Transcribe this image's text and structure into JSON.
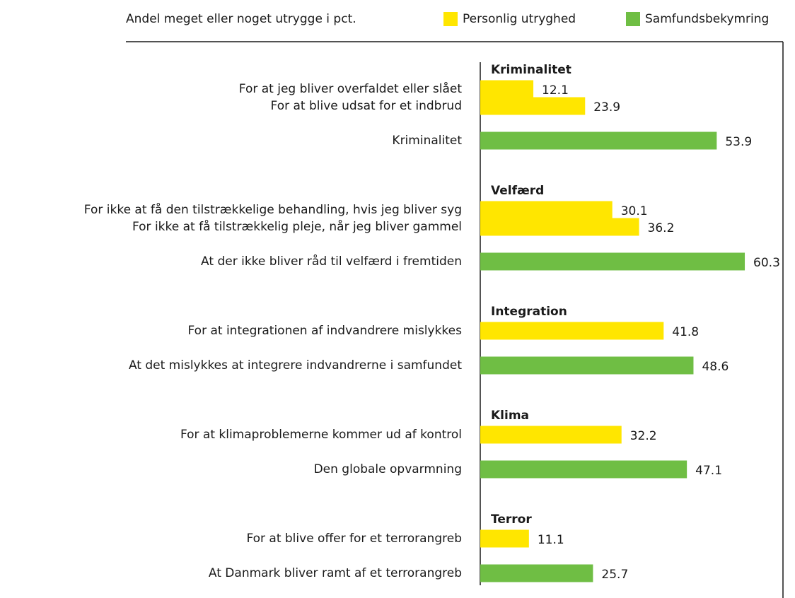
{
  "chart_data": {
    "type": "bar",
    "orientation": "horizontal",
    "legend_title": "Andel meget eller noget utrygge i pct.",
    "groups": [
      {
        "name": "Kriminalitet",
        "categories": [
          "For at jeg bliver overfaldet eller slået",
          "For at blive udsat for et indbrud",
          "Kriminalitet"
        ]
      },
      {
        "name": "Velfærd",
        "categories": [
          "For ikke at få den tilstrækkelige behandling, hvis jeg bliver syg",
          "For ikke at få tilstrækkelig pleje, når jeg bliver gammel",
          "At der ikke bliver råd til velfærd i fremtiden"
        ]
      },
      {
        "name": "Integration",
        "categories": [
          "For at integrationen af indvandrere mislykkes",
          "At det mislykkes at integrere indvandrerne i samfundet"
        ]
      },
      {
        "name": "Klima",
        "categories": [
          "For at klimaproblemerne kommer ud af kontrol",
          "Den globale opvarmning"
        ]
      },
      {
        "name": "Terror",
        "categories": [
          "For at blive offer for et terrorangreb",
          "At Danmark bliver ramt af et terrorangreb"
        ]
      }
    ],
    "series": [
      {
        "name": "Personlig utryghed",
        "color": "#ffe600",
        "values": [
          12.1,
          23.9,
          null,
          30.1,
          36.2,
          null,
          41.8,
          null,
          32.2,
          null,
          11.1,
          null
        ]
      },
      {
        "name": "Samfundsbekymring",
        "color": "#6fbe44",
        "values": [
          null,
          null,
          53.9,
          null,
          null,
          60.3,
          null,
          48.6,
          null,
          47.1,
          null,
          25.7
        ]
      }
    ],
    "xlim": [
      0,
      69
    ],
    "grid": false
  }
}
